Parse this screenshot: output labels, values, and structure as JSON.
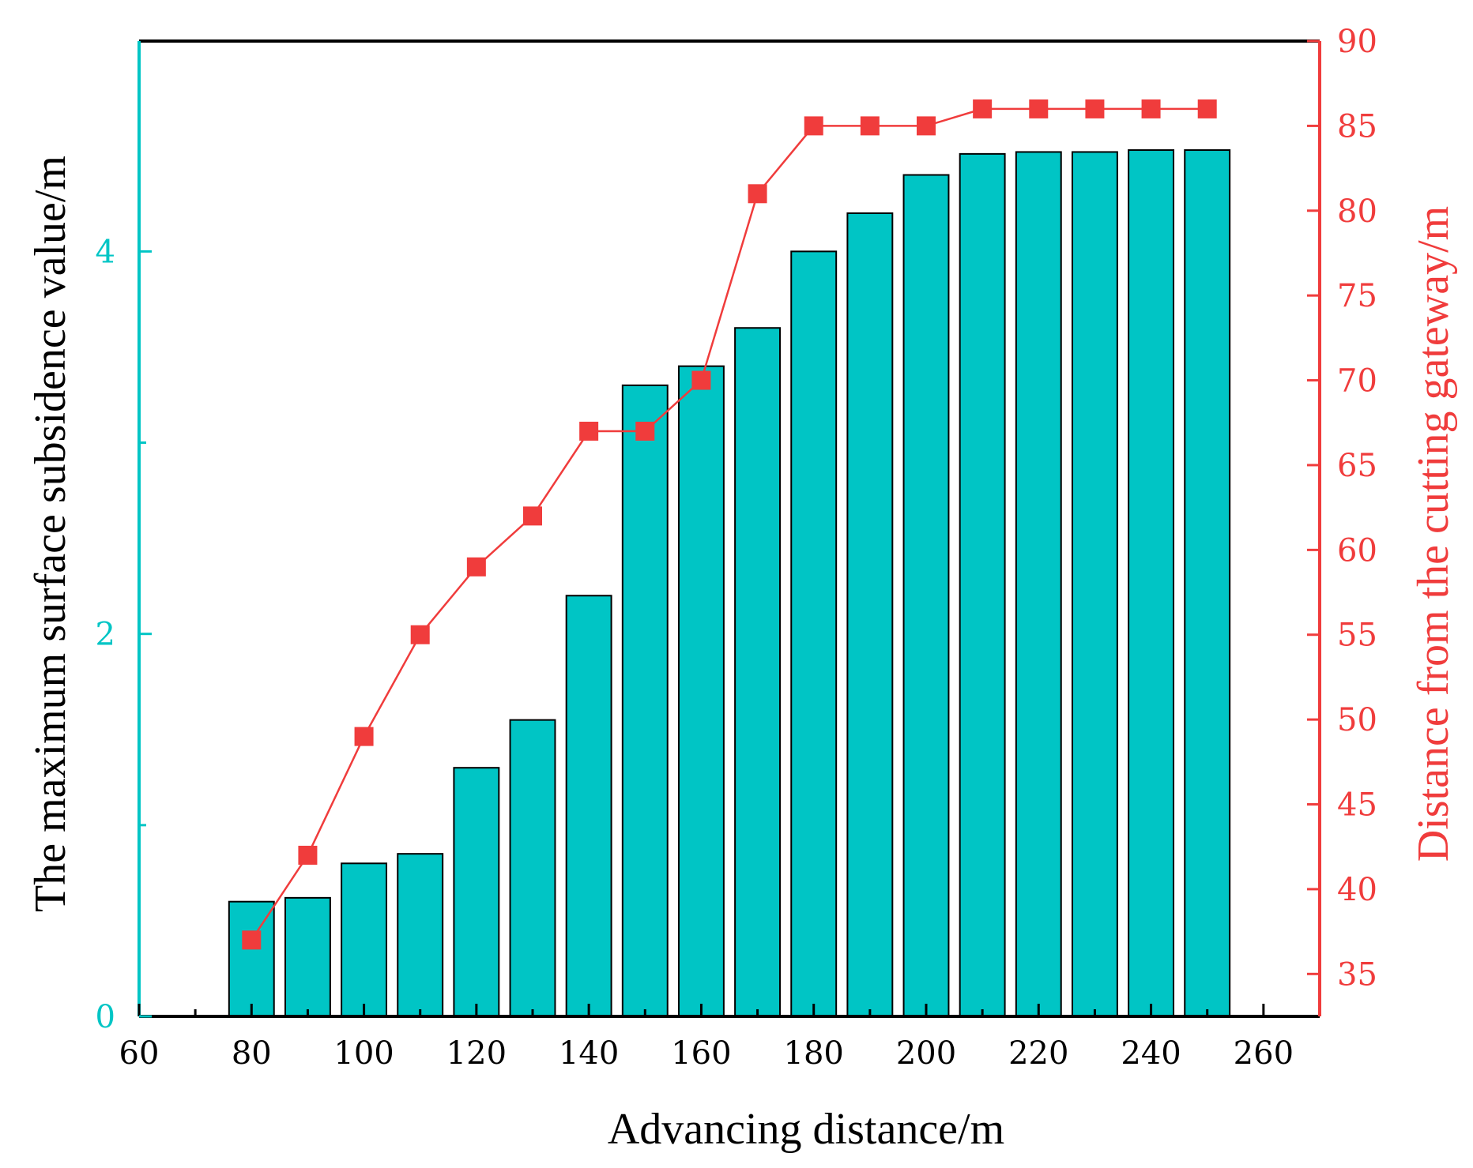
{
  "chart_data": {
    "type": "bar+line",
    "title": "",
    "xlabel": "Advancing distance/m",
    "xlim": [
      60,
      270
    ],
    "xticks": [
      60,
      80,
      100,
      120,
      140,
      160,
      180,
      200,
      220,
      240,
      260
    ],
    "x": [
      80,
      90,
      100,
      110,
      120,
      130,
      140,
      150,
      160,
      170,
      180,
      190,
      200,
      210,
      220,
      230,
      240,
      250
    ],
    "series": [
      {
        "name": "The maximum surface subsidence value/m",
        "type": "bar",
        "axis": "left",
        "color": "#00C5C5",
        "values": [
          0.6,
          0.62,
          0.8,
          0.85,
          1.3,
          1.55,
          2.2,
          3.3,
          3.4,
          3.6,
          4.0,
          4.2,
          4.4,
          4.51,
          4.52,
          4.52,
          4.53,
          4.53
        ]
      },
      {
        "name": "Distance from the cutting gateway/m",
        "type": "line",
        "marker": "square",
        "axis": "right",
        "color": "#F03C3C",
        "values": [
          37,
          42,
          49,
          55,
          59,
          62,
          67,
          67,
          70,
          81,
          85,
          85,
          85,
          86,
          86,
          86,
          86,
          86
        ]
      }
    ],
    "y_left": {
      "label": "The maximum surface subsidence value/m",
      "ylim": [
        0,
        5.1
      ],
      "ticks": [
        0,
        2,
        4
      ],
      "minor_ticks": [
        1,
        3
      ],
      "color": "#00C5C5"
    },
    "y_right": {
      "label": "Distance from the cutting gateway/m",
      "ylim": [
        32.5,
        90
      ],
      "ticks": [
        35,
        40,
        45,
        50,
        55,
        60,
        65,
        70,
        75,
        80,
        85,
        90
      ],
      "color": "#F03C3C"
    },
    "grid": false,
    "legend": "none"
  }
}
